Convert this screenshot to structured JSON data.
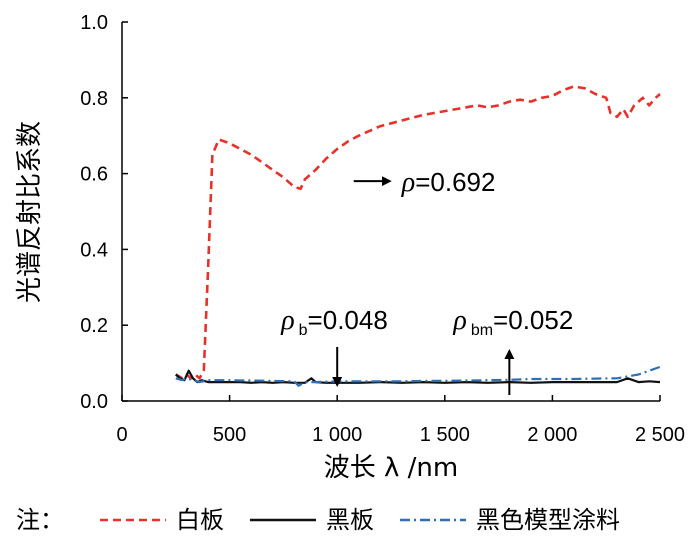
{
  "chart_data": {
    "type": "line",
    "xlabel": "波长 λ /nm",
    "ylabel": "光谱反射比系数",
    "xlim": [
      0,
      2500
    ],
    "ylim": [
      0,
      1.0
    ],
    "x_ticks": [
      0,
      500,
      1000,
      1500,
      2000,
      2500
    ],
    "x_tick_labels": [
      "0",
      "500",
      "1 000",
      "1 500",
      "2 000",
      "2 500"
    ],
    "y_ticks": [
      0.0,
      0.2,
      0.4,
      0.6,
      0.8,
      1.0
    ],
    "y_tick_labels": [
      "0.0",
      "0.2",
      "0.4",
      "0.6",
      "0.8",
      "1.0"
    ],
    "grid": false,
    "legend_prefix": "注：",
    "legend_position": "bottom",
    "series": [
      {
        "name": "白板",
        "color": "#e8312a",
        "style": "dashed",
        "x": [
          250,
          280,
          300,
          320,
          340,
          360,
          380,
          400,
          420,
          450,
          500,
          550,
          600,
          650,
          700,
          750,
          800,
          830,
          850,
          900,
          950,
          1000,
          1050,
          1100,
          1200,
          1300,
          1400,
          1500,
          1600,
          1650,
          1700,
          1750,
          1800,
          1850,
          1900,
          1950,
          2000,
          2050,
          2100,
          2150,
          2200,
          2250,
          2270,
          2300,
          2330,
          2350,
          2380,
          2400,
          2420,
          2450,
          2480,
          2500
        ],
        "y": [
          0.07,
          0.06,
          0.07,
          0.06,
          0.07,
          0.06,
          0.08,
          0.35,
          0.65,
          0.69,
          0.68,
          0.665,
          0.65,
          0.63,
          0.61,
          0.59,
          0.565,
          0.56,
          0.585,
          0.61,
          0.64,
          0.665,
          0.685,
          0.7,
          0.725,
          0.74,
          0.755,
          0.765,
          0.775,
          0.78,
          0.775,
          0.78,
          0.79,
          0.795,
          0.79,
          0.8,
          0.805,
          0.82,
          0.83,
          0.825,
          0.81,
          0.8,
          0.76,
          0.75,
          0.77,
          0.75,
          0.78,
          0.79,
          0.8,
          0.78,
          0.8,
          0.81
        ]
      },
      {
        "name": "黑板",
        "color": "#111111",
        "style": "solid",
        "x": [
          250,
          270,
          290,
          310,
          330,
          350,
          370,
          400,
          450,
          500,
          550,
          600,
          650,
          700,
          750,
          800,
          850,
          880,
          900,
          950,
          1000,
          1100,
          1200,
          1300,
          1400,
          1500,
          1600,
          1700,
          1800,
          1900,
          2000,
          2100,
          2200,
          2300,
          2350,
          2400,
          2450,
          2500
        ],
        "y": [
          0.07,
          0.06,
          0.055,
          0.08,
          0.06,
          0.05,
          0.055,
          0.05,
          0.05,
          0.05,
          0.05,
          0.048,
          0.05,
          0.048,
          0.05,
          0.048,
          0.048,
          0.06,
          0.05,
          0.048,
          0.048,
          0.048,
          0.05,
          0.048,
          0.05,
          0.048,
          0.05,
          0.048,
          0.05,
          0.048,
          0.05,
          0.05,
          0.05,
          0.05,
          0.06,
          0.05,
          0.052,
          0.05
        ]
      },
      {
        "name": "黑色模型涂料",
        "color": "#2e6fb5",
        "style": "dashdot",
        "x": [
          250,
          280,
          300,
          330,
          360,
          400,
          450,
          500,
          550,
          600,
          700,
          800,
          820,
          850,
          900,
          1000,
          1100,
          1200,
          1300,
          1400,
          1500,
          1600,
          1700,
          1800,
          1900,
          2000,
          2100,
          2200,
          2300,
          2350,
          2400,
          2450,
          2500
        ],
        "y": [
          0.06,
          0.055,
          0.06,
          0.055,
          0.05,
          0.055,
          0.055,
          0.055,
          0.054,
          0.054,
          0.053,
          0.052,
          0.04,
          0.05,
          0.05,
          0.052,
          0.052,
          0.052,
          0.052,
          0.053,
          0.053,
          0.054,
          0.055,
          0.056,
          0.058,
          0.058,
          0.058,
          0.059,
          0.06,
          0.065,
          0.07,
          0.08,
          0.09
        ]
      }
    ],
    "annotations": [
      {
        "symbol": "ρ",
        "sub": "",
        "text": "=0.692",
        "arrow": "right",
        "x": 1300,
        "y": 0.58
      },
      {
        "symbol": "ρ",
        "sub": "b",
        "text": "=0.048",
        "arrow": "down",
        "x": 1000,
        "y": 0.19
      },
      {
        "symbol": "ρ",
        "sub": "bm",
        "text": "=0.052",
        "arrow": "up",
        "x": 1800,
        "y": 0.19
      }
    ]
  }
}
